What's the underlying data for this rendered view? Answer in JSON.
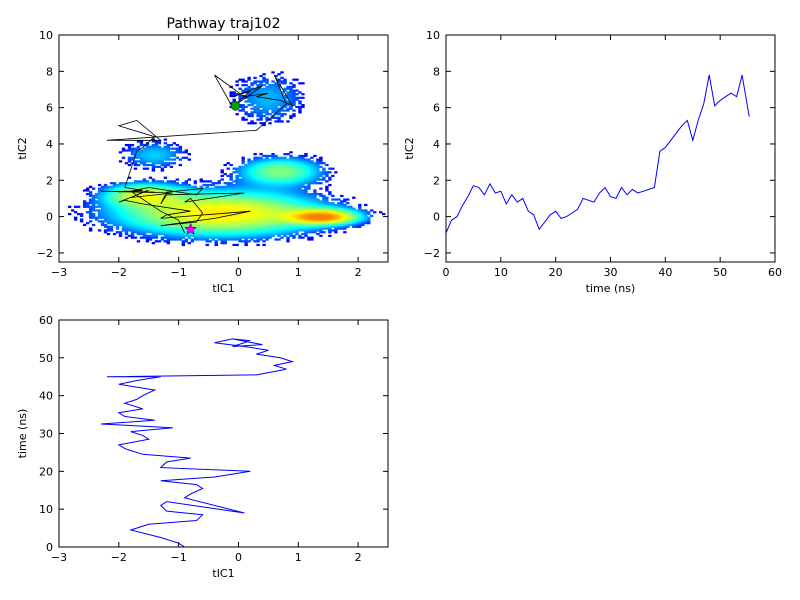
{
  "chart_data": [
    {
      "type": "heatmap",
      "title": "Pathway traj102",
      "xlabel": "tIC1",
      "ylabel": "tIC2",
      "xlim": [
        -3,
        2.5
      ],
      "ylim": [
        -2.5,
        10
      ],
      "xticks": [
        -3,
        -2,
        -1,
        0,
        1,
        2
      ],
      "yticks": [
        -2,
        0,
        2,
        4,
        6,
        8,
        10
      ],
      "grid": false,
      "density_lobes": [
        {
          "cx": -0.3,
          "cy": 0.2,
          "sx": 1.05,
          "sy": 0.75,
          "weight": 1.0
        },
        {
          "cx": 1.4,
          "cy": 0.0,
          "sx": 0.35,
          "sy": 0.25,
          "weight": 1.4
        },
        {
          "cx": -1.6,
          "cy": 1.2,
          "sx": 0.4,
          "sy": 0.4,
          "weight": 0.7
        },
        {
          "cx": 0.7,
          "cy": 2.5,
          "sx": 0.45,
          "sy": 0.5,
          "weight": 0.55
        },
        {
          "cx": -1.4,
          "cy": 3.4,
          "sx": 0.35,
          "sy": 0.5,
          "weight": 0.25
        },
        {
          "cx": 0.5,
          "cy": 6.5,
          "sx": 0.4,
          "sy": 0.9,
          "weight": 0.22
        }
      ],
      "colormap": [
        "#00007f",
        "#0000ff",
        "#007fff",
        "#00ffff",
        "#7fff7f",
        "#ffff00",
        "#ff7f00"
      ],
      "path_color": "#000000",
      "start_marker": {
        "x": -0.8,
        "y": -0.7,
        "shape": "star",
        "color": "#ff00ff"
      },
      "end_marker": {
        "x": -0.05,
        "y": 6.1,
        "shape": "circle",
        "color": "#00a000"
      }
    },
    {
      "type": "line",
      "title": "",
      "xlabel": "time (ns)",
      "ylabel": "tIC2",
      "xlim": [
        0,
        60
      ],
      "ylim": [
        -2.5,
        10
      ],
      "xticks": [
        0,
        10,
        20,
        30,
        40,
        50,
        60
      ],
      "yticks": [
        -2,
        0,
        2,
        4,
        6,
        8,
        10
      ],
      "grid": false,
      "series": [
        {
          "color": "#0000ff",
          "x": [
            0,
            1,
            2,
            3,
            4,
            5,
            6,
            7,
            8,
            9,
            10,
            11,
            12,
            13,
            14,
            15,
            16,
            17,
            18,
            19,
            20,
            21,
            22,
            23,
            24,
            25,
            26,
            27,
            28,
            29,
            30,
            31,
            32,
            33,
            34,
            35,
            36,
            37,
            38,
            39,
            40,
            41,
            42,
            43,
            44,
            45,
            46,
            47,
            48,
            49,
            50,
            51,
            52,
            53,
            54,
            55.3
          ],
          "values": [
            -0.9,
            -0.2,
            0.0,
            0.6,
            1.1,
            1.7,
            1.6,
            1.2,
            1.8,
            1.3,
            1.4,
            0.7,
            1.2,
            0.8,
            1.0,
            0.3,
            0.1,
            -0.7,
            -0.3,
            0.1,
            0.3,
            -0.1,
            0.0,
            0.2,
            0.4,
            1.0,
            0.9,
            0.8,
            1.3,
            1.6,
            1.1,
            1.0,
            1.6,
            1.2,
            1.5,
            1.3,
            1.4,
            1.5,
            1.6,
            3.6,
            3.8,
            4.2,
            4.6,
            5.0,
            5.3,
            4.2,
            5.3,
            6.2,
            7.8,
            6.1,
            6.4,
            6.6,
            6.8,
            6.6,
            7.8,
            5.5
          ]
        }
      ]
    },
    {
      "type": "line",
      "title": "",
      "xlabel": "tIC1",
      "ylabel": "time (ns)",
      "xlim": [
        -3,
        2.5
      ],
      "ylim": [
        0,
        60
      ],
      "xticks": [
        -3,
        -2,
        -1,
        0,
        1,
        2
      ],
      "yticks": [
        0,
        10,
        20,
        30,
        40,
        50,
        60
      ],
      "grid": false,
      "series": [
        {
          "color": "#0000ff",
          "x": [
            -0.9,
            -1.0,
            -1.3,
            -1.8,
            -1.5,
            -0.7,
            -0.6,
            -1.2,
            -1.3,
            -1.2,
            0.1,
            -0.9,
            -0.8,
            -0.6,
            -0.7,
            -1.3,
            -0.4,
            0.2,
            -1.3,
            -1.2,
            -0.8,
            -1.6,
            -1.9,
            -2.0,
            -1.5,
            -1.6,
            -1.8,
            -1.1,
            -2.3,
            -1.4,
            -1.9,
            -2.0,
            -1.6,
            -1.9,
            -1.7,
            -1.6,
            -1.4,
            -2.0,
            -1.7,
            -1.3,
            -2.2,
            0.3,
            0.8,
            0.6,
            0.9,
            0.7,
            0.3,
            0.5,
            0.1,
            -0.4,
            -0.1,
            0.2,
            -0.1,
            0.4,
            -0.1
          ],
          "values": [
            0,
            1,
            2.5,
            4.5,
            6,
            7,
            8.5,
            9.5,
            11,
            12,
            9,
            13,
            14,
            15.5,
            16.5,
            17.5,
            18.5,
            20,
            21,
            22.5,
            23.5,
            24.5,
            26,
            27,
            28.5,
            29.5,
            30.5,
            31.5,
            32.5,
            33.5,
            34.5,
            35.5,
            36.5,
            38,
            39,
            40,
            41.5,
            43,
            44,
            45,
            45,
            45.5,
            47,
            48,
            49,
            50,
            51,
            52,
            53,
            54,
            55,
            54.5,
            53,
            53.5,
            55
          ]
        }
      ]
    }
  ]
}
